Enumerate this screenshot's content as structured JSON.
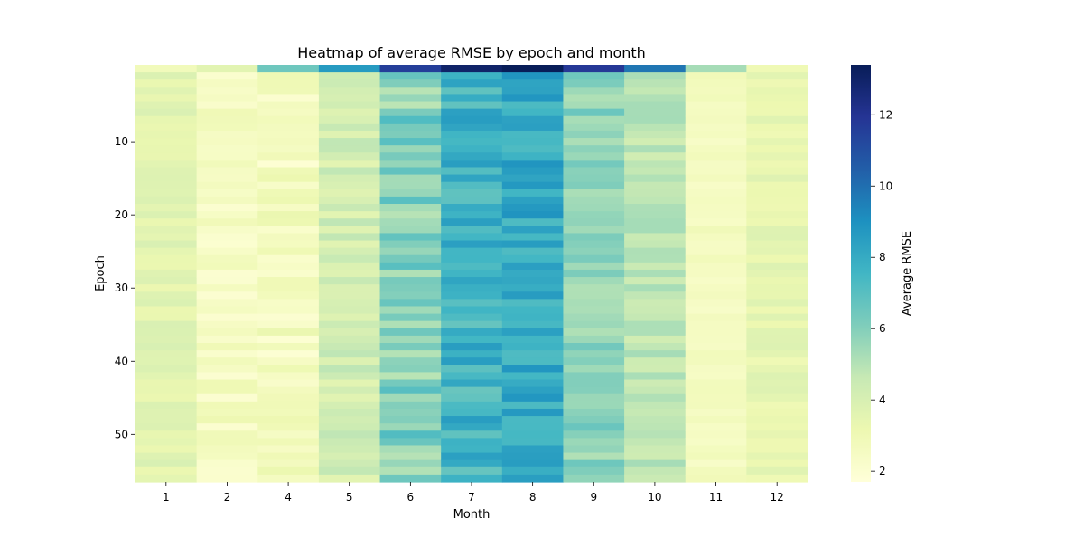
{
  "chart_data": {
    "type": "heatmap",
    "title": "Heatmap of average RMSE by epoch and month",
    "xlabel": "Month",
    "ylabel": "Epoch",
    "x_categories": [
      "1",
      "2",
      "4",
      "5",
      "6",
      "7",
      "8",
      "9",
      "10",
      "11",
      "12"
    ],
    "epochs": [
      0,
      1,
      2,
      3,
      4,
      5,
      6,
      7,
      8,
      9,
      10,
      11,
      12,
      13,
      14,
      15,
      16,
      17,
      18,
      19,
      20,
      21,
      22,
      23,
      24,
      25,
      26,
      27,
      28,
      29,
      30,
      31,
      32,
      33,
      34,
      35,
      36,
      37,
      38,
      39,
      40,
      41,
      42,
      43,
      44,
      45,
      46,
      47,
      48,
      49,
      50,
      51,
      52,
      53,
      54,
      55,
      56
    ],
    "y_ticks": [
      10,
      20,
      30,
      40,
      50
    ],
    "colorbar": {
      "label": "Average RMSE",
      "ticks": [
        2,
        4,
        6,
        8,
        10,
        12
      ],
      "range": [
        1.7,
        13.4
      ],
      "colormap": "YlGnBu",
      "stops": [
        "#ffffd9",
        "#edf8b1",
        "#c7e9b4",
        "#7fcdbb",
        "#41b6c4",
        "#1d91c0",
        "#225ea8",
        "#253494",
        "#081d58"
      ]
    },
    "column_value_ranges": {
      "1": {
        "epoch0": 2.8,
        "min": 3.2,
        "max": 4.0
      },
      "2": {
        "epoch0": 3.6,
        "min": 2.0,
        "max": 3.1
      },
      "4": {
        "epoch0": 6.5,
        "min": 1.9,
        "max": 3.3
      },
      "5": {
        "epoch0": 8.6,
        "min": 3.5,
        "max": 4.8
      },
      "6": {
        "epoch0": 11.6,
        "min": 4.8,
        "max": 7.2
      },
      "7": {
        "epoch0": 13.0,
        "min": 6.6,
        "max": 8.6
      },
      "8": {
        "epoch0": 13.4,
        "min": 7.2,
        "max": 8.9
      },
      "9": {
        "epoch0": 11.8,
        "min": 5.0,
        "max": 6.6
      },
      "10": {
        "epoch0": 9.8,
        "min": 4.2,
        "max": 5.4
      },
      "11": {
        "epoch0": 5.3,
        "min": 2.3,
        "max": 2.9
      },
      "12": {
        "epoch0": 3.0,
        "min": 3.0,
        "max": 3.8
      }
    }
  }
}
